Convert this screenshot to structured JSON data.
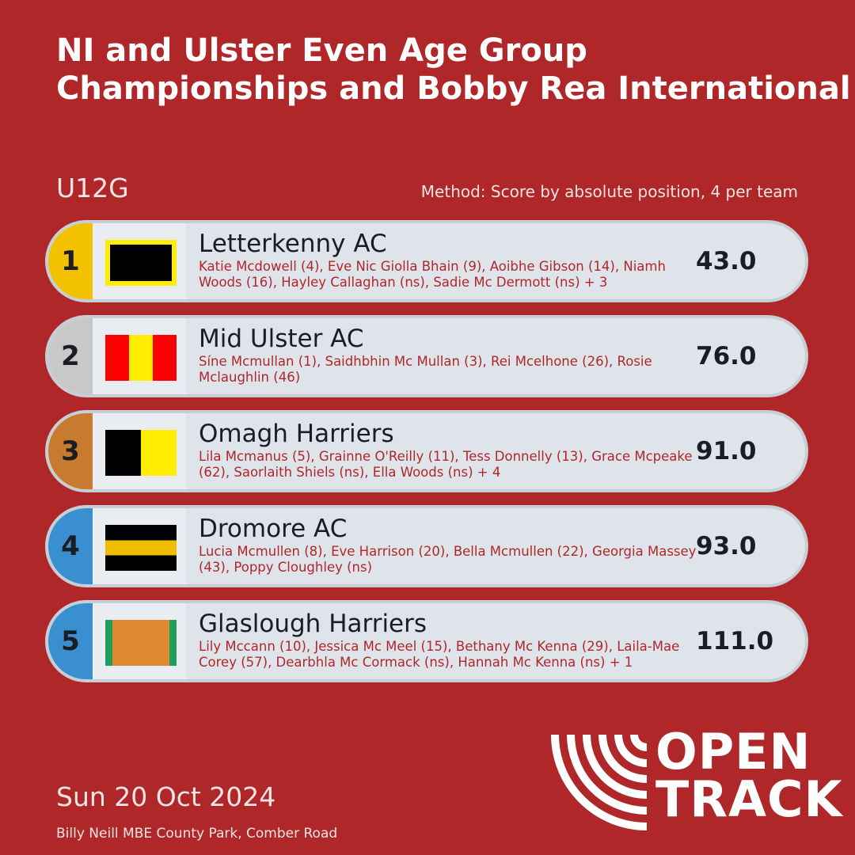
{
  "title": {
    "line1": "NI and Ulster Even Age Group",
    "line2": "Championships and Bobby Rea International Cross Country"
  },
  "category": "U12G",
  "method": "Method: Score by absolute position, 4 per team",
  "teams": [
    {
      "position": "1",
      "name": "Letterkenny AC",
      "members": "Katie Mcdowell (4), Eve Nic Giolla Bhain (9), Aoibhe Gibson (14), Niamh Woods (16), Hayley Callaghan (ns), Sadie Mc Dermott (ns) + 3",
      "score": "43.0",
      "medal_color": "#f2c200",
      "flag_colors": [
        "#ffee00",
        "#000000"
      ]
    },
    {
      "position": "2",
      "name": "Mid Ulster AC",
      "members": "Síne Mcmullan (1), Saidhbhin Mc Mullan (3), Rei Mcelhone (26), Rosie Mclaughlin (46)",
      "score": "76.0",
      "medal_color": "#c8c8c8",
      "flag_colors": [
        "#ff0000",
        "#ffee00",
        "#ff0000"
      ]
    },
    {
      "position": "3",
      "name": "Omagh Harriers",
      "members": "Lila Mcmanus (5), Grainne O'Reilly (11), Tess Donnelly (13), Grace Mcpeake (62), Saorlaith Shiels (ns), Ella Woods (ns) + 4",
      "score": "91.0",
      "medal_color": "#c87a2e",
      "flag_colors": [
        "#000000",
        "#ffee00"
      ]
    },
    {
      "position": "4",
      "name": "Dromore AC",
      "members": "Lucia Mcmullen (8), Eve Harrison (20), Bella Mcmullen (22), Georgia Massey (43), Poppy Cloughley (ns)",
      "score": "93.0",
      "medal_color": "#3a8fd0",
      "flag_colors": [
        "#000000",
        "#f0be00",
        "#000000"
      ]
    },
    {
      "position": "5",
      "name": "Glaslough Harriers",
      "members": "Lily Mccann (10), Jessica Mc Meel (15), Bethany Mc Kenna (29), Laila-Mae Corey (57), Dearbhla Mc Cormack (ns), Hannah Mc Kenna (ns) + 1",
      "score": "111.0",
      "medal_color": "#3a8fd0",
      "flag_colors": [
        "#1e9e5a",
        "#de8a30",
        "#1e9e5a"
      ]
    }
  ],
  "date": "Sun 20 Oct 2024",
  "venue": "Billy Neill MBE County Park, Comber Road",
  "logo": {
    "line1": "OPEN",
    "line2": "TRACK"
  },
  "colors": {
    "background": "#b0272a",
    "row_background": "#dfe4ea",
    "member_text": "#b0272a"
  }
}
